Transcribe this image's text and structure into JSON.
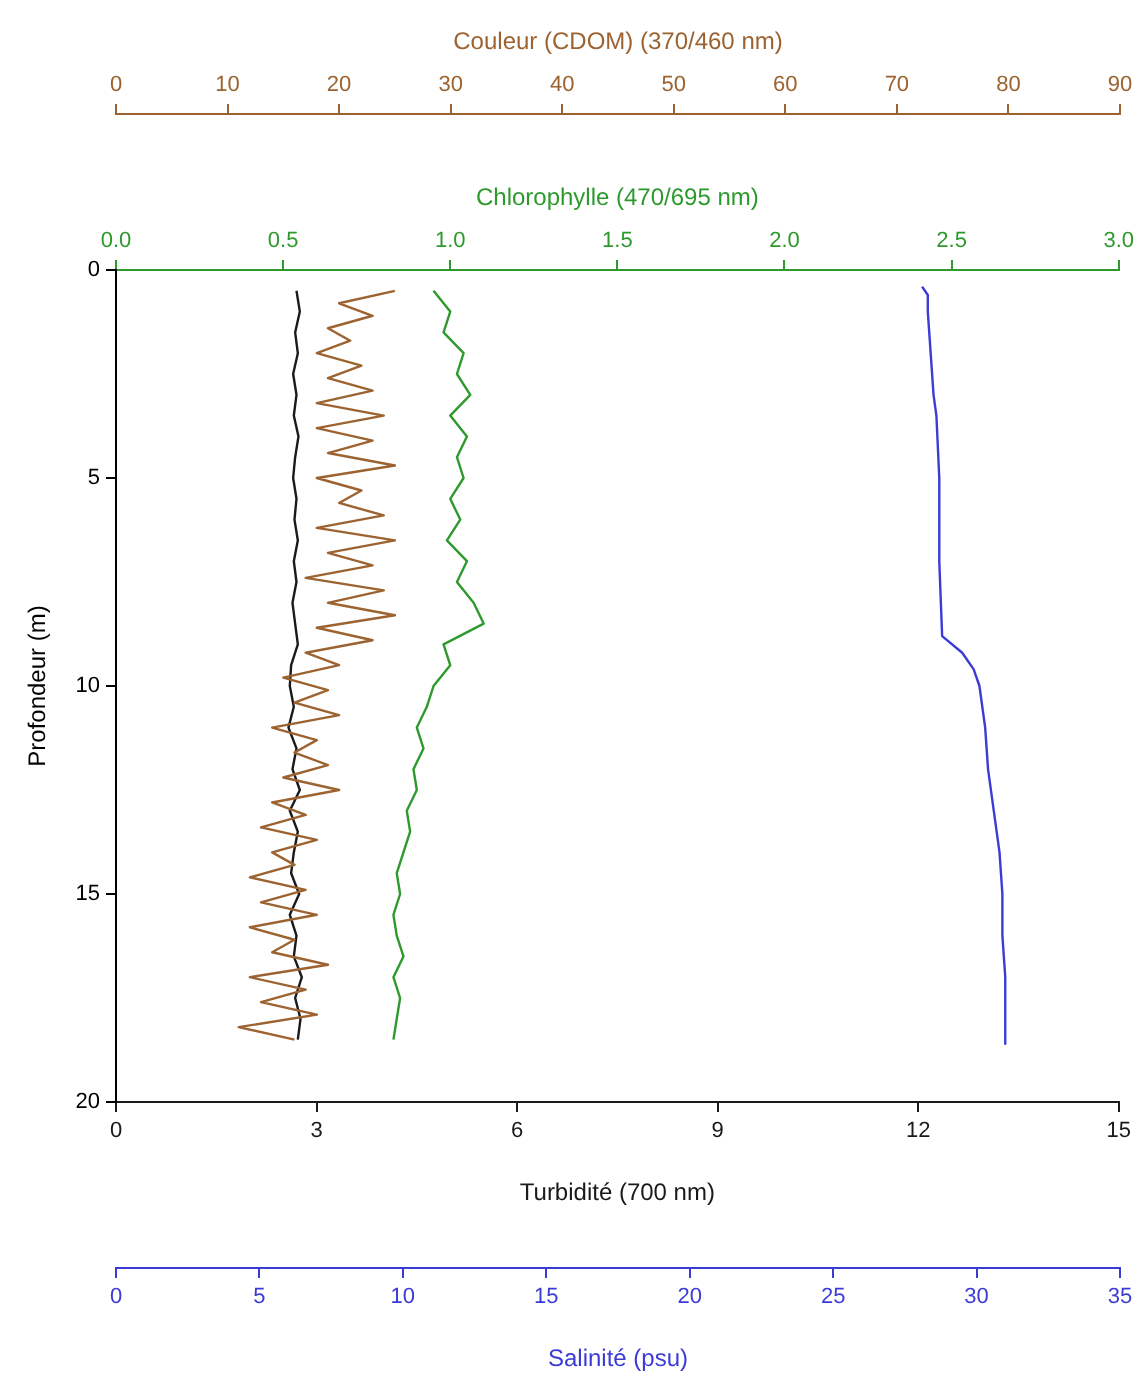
{
  "chart_data": [
    {
      "type": "line",
      "ylabel": "Profondeur (m)",
      "ylim": [
        20,
        0
      ],
      "yticks": [
        0,
        5,
        10,
        15,
        20
      ],
      "xlabel": "Turbidité (700 nm)",
      "xlim": [
        0,
        15
      ],
      "xticks": [
        0,
        3,
        6,
        9,
        12,
        15
      ],
      "x2label": "Chlorophylle (470/695 nm)",
      "x2lim": [
        0,
        3
      ],
      "x2ticks": [
        {
          "value": 0,
          "label": "0.0"
        },
        {
          "value": 0.5,
          "label": "0.5"
        },
        {
          "value": 1,
          "label": "1.0"
        },
        {
          "value": 1.5,
          "label": "1.5"
        },
        {
          "value": 2,
          "label": "2.0"
        },
        {
          "value": 2.5,
          "label": "2.5"
        },
        {
          "value": 3,
          "label": "3.0"
        }
      ],
      "marker": "none",
      "grid": false,
      "legend": false,
      "series": [
        {
          "color": "#1a1a1a",
          "x": [
            2.7,
            2.75,
            2.68,
            2.72,
            2.65,
            2.7,
            2.66,
            2.73,
            2.68,
            2.65,
            2.7,
            2.67,
            2.72,
            2.66,
            2.7,
            2.64,
            2.68,
            2.72,
            2.62,
            2.6,
            2.66,
            2.58,
            2.7,
            2.64,
            2.75,
            2.6,
            2.72,
            2.66,
            2.62,
            2.74,
            2.6,
            2.7,
            2.66,
            2.78,
            2.68,
            2.76,
            2.72
          ],
          "values": [
            0.5,
            1,
            1.5,
            2,
            2.5,
            3,
            3.5,
            4,
            4.5,
            5,
            5.5,
            6,
            6.5,
            7,
            7.5,
            8,
            8.5,
            9,
            9.5,
            10,
            10.5,
            11,
            11.5,
            12,
            12.5,
            13,
            13.5,
            14,
            14.5,
            15,
            15.5,
            16,
            16.5,
            17,
            17.5,
            18,
            18.5
          ]
        },
        {
          "axis": "x2",
          "color": "#2e9a2e",
          "x": [
            0.95,
            1.0,
            0.98,
            1.04,
            1.02,
            1.06,
            1.0,
            1.05,
            1.02,
            1.04,
            1.0,
            1.03,
            0.99,
            1.05,
            1.02,
            1.07,
            1.1,
            0.98,
            1.0,
            0.95,
            0.93,
            0.9,
            0.92,
            0.89,
            0.9,
            0.87,
            0.88,
            0.86,
            0.84,
            0.85,
            0.83,
            0.84,
            0.86,
            0.83,
            0.85,
            0.84,
            0.83
          ],
          "values": [
            0.5,
            1,
            1.5,
            2,
            2.5,
            3,
            3.5,
            4,
            4.5,
            5,
            5.5,
            6,
            6.5,
            7,
            7.5,
            8,
            8.5,
            9,
            9.5,
            10,
            10.5,
            11,
            11.5,
            12,
            12.5,
            13,
            13.5,
            14,
            14.5,
            15,
            15.5,
            16,
            16.5,
            17,
            17.5,
            18,
            18.5
          ]
        }
      ]
    },
    {
      "type": "line",
      "ylim": [
        20,
        0
      ],
      "tick_labels": "x",
      "xlabel": "Couleur (CDOM) (370/460 nm)",
      "xlim": [
        0,
        90
      ],
      "xticks": [
        0,
        10,
        20,
        30,
        40,
        50,
        60,
        70,
        80,
        90
      ],
      "marker": "none",
      "grid": false,
      "legend": false,
      "series": [
        {
          "color": "#9c6331",
          "x": [
            25,
            20,
            23,
            19,
            21,
            18,
            22,
            19,
            23,
            18,
            24,
            18,
            23,
            19,
            25,
            18,
            22,
            20,
            24,
            18,
            25,
            19,
            23,
            17,
            24,
            19,
            25,
            18,
            23,
            17,
            20,
            15,
            19,
            16,
            20,
            14,
            18,
            16,
            19,
            15,
            20,
            14,
            17,
            13,
            18,
            14,
            16,
            12,
            17,
            13,
            18,
            12,
            16,
            14,
            19,
            12,
            17,
            13,
            18,
            11,
            16
          ],
          "values": [
            0.5,
            0.8,
            1.1,
            1.4,
            1.7,
            2.0,
            2.3,
            2.6,
            2.9,
            3.2,
            3.5,
            3.8,
            4.1,
            4.4,
            4.7,
            5.0,
            5.3,
            5.6,
            5.9,
            6.2,
            6.5,
            6.8,
            7.1,
            7.4,
            7.7,
            8.0,
            8.3,
            8.6,
            8.9,
            9.2,
            9.5,
            9.8,
            10.1,
            10.4,
            10.7,
            11.0,
            11.3,
            11.6,
            11.9,
            12.2,
            12.5,
            12.8,
            13.1,
            13.4,
            13.7,
            14.0,
            14.3,
            14.6,
            14.9,
            15.2,
            15.5,
            15.8,
            16.1,
            16.4,
            16.7,
            17.0,
            17.3,
            17.6,
            17.9,
            18.2,
            18.5
          ]
        }
      ]
    },
    {
      "type": "line",
      "ylim": [
        20,
        0
      ],
      "tick_labels": "x",
      "xlabel": "Salinité (psu)",
      "xlim": [
        0,
        35
      ],
      "xticks": [
        0,
        5,
        10,
        15,
        20,
        25,
        30,
        35
      ],
      "marker": "none",
      "grid": false,
      "legend": false,
      "series": [
        {
          "color": "#3b3bd6",
          "x": [
            28.1,
            28.3,
            28.3,
            28.4,
            28.5,
            28.6,
            28.7,
            28.7,
            28.8,
            29.5,
            29.9,
            30.1,
            30.3,
            30.4,
            30.6,
            30.8,
            30.9,
            30.9,
            31.0,
            31.0
          ],
          "values": [
            0.4,
            0.6,
            1,
            2,
            3,
            3.5,
            5,
            7,
            8.8,
            9.2,
            9.6,
            10,
            11,
            12,
            13,
            14,
            15,
            16,
            17,
            18.6
          ]
        }
      ]
    }
  ]
}
